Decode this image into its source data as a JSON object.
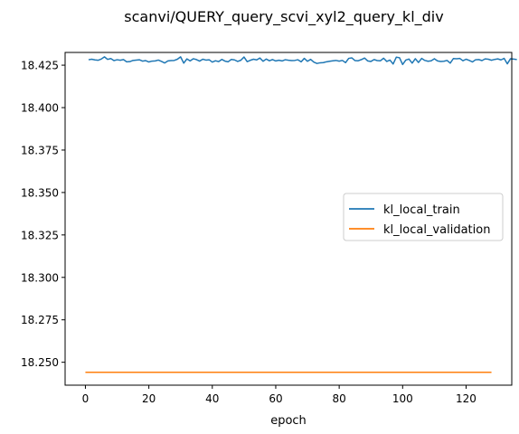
{
  "chart_data": {
    "type": "line",
    "title": "scanvi/QUERY_query_scvi_xyl2_query_kl_div",
    "xlabel": "epoch",
    "ylabel": "",
    "xlim": [
      -6.4,
      134.4
    ],
    "ylim": [
      18.2365,
      18.4325
    ],
    "x_ticks": [
      0,
      20,
      40,
      60,
      80,
      100,
      120
    ],
    "y_ticks": [
      18.25,
      18.275,
      18.3,
      18.325,
      18.35,
      18.375,
      18.4,
      18.425
    ],
    "x_tick_labels": [
      "0",
      "20",
      "40",
      "60",
      "80",
      "100",
      "120"
    ],
    "y_tick_labels": [
      "18.250",
      "18.275",
      "18.300",
      "18.325",
      "18.350",
      "18.375",
      "18.400",
      "18.425"
    ],
    "grid": false,
    "legend": {
      "placement": "center-right"
    },
    "series": [
      {
        "name": "kl_local_train",
        "color": "#1f77b4",
        "x_start": 1,
        "x_step": 1,
        "values": [
          18.4282,
          18.4285,
          18.4281,
          18.4279,
          18.4286,
          18.4299,
          18.4284,
          18.4289,
          18.4277,
          18.4282,
          18.4279,
          18.4283,
          18.427,
          18.4271,
          18.4278,
          18.428,
          18.4282,
          18.4274,
          18.4277,
          18.4269,
          18.4274,
          18.4275,
          18.428,
          18.4272,
          18.4263,
          18.4275,
          18.4277,
          18.4278,
          18.4285,
          18.4299,
          18.4262,
          18.4287,
          18.4275,
          18.4288,
          18.4283,
          18.4274,
          18.4285,
          18.428,
          18.4282,
          18.4268,
          18.4276,
          18.4271,
          18.4284,
          18.4274,
          18.427,
          18.4284,
          18.4281,
          18.4272,
          18.4279,
          18.4298,
          18.4271,
          18.4279,
          18.4285,
          18.4281,
          18.4292,
          18.4273,
          18.4286,
          18.4276,
          18.4283,
          18.4275,
          18.4279,
          18.4275,
          18.4282,
          18.4279,
          18.4277,
          18.4278,
          18.4282,
          18.427,
          18.429,
          18.4273,
          18.4284,
          18.4268,
          18.426,
          18.4264,
          18.4265,
          18.427,
          18.4273,
          18.4276,
          18.4278,
          18.4274,
          18.4278,
          18.4265,
          18.429,
          18.4293,
          18.4277,
          18.4276,
          18.4283,
          18.4292,
          18.4275,
          18.4272,
          18.4283,
          18.4277,
          18.4276,
          18.4291,
          18.4272,
          18.428,
          18.4257,
          18.4297,
          18.4294,
          18.4254,
          18.428,
          18.4286,
          18.4262,
          18.4288,
          18.4266,
          18.429,
          18.4278,
          18.4273,
          18.4276,
          18.4288,
          18.4275,
          18.4272,
          18.4273,
          18.4278,
          18.4262,
          18.4289,
          18.4288,
          18.429,
          18.4276,
          18.4285,
          18.4278,
          18.4269,
          18.4282,
          18.4283,
          18.4277,
          18.4287,
          18.4285,
          18.4279,
          18.4284,
          18.4287,
          18.4281,
          18.429,
          18.4258,
          18.4288,
          18.4286,
          18.4283
        ]
      },
      {
        "name": "kl_local_validation",
        "color": "#ff7f0e",
        "x_start": 0,
        "x_step": 1,
        "count": 129,
        "constant_value": 18.2441
      }
    ]
  }
}
